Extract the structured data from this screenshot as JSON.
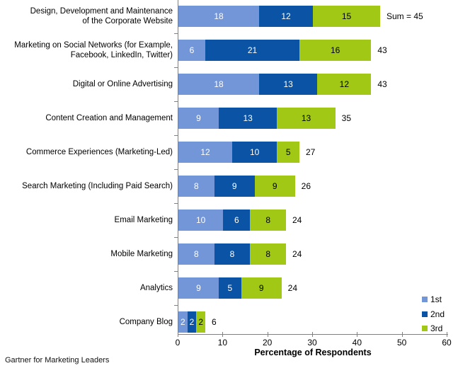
{
  "chart_data": {
    "type": "bar",
    "orientation": "horizontal",
    "stacked": true,
    "title": "",
    "xlabel": "Percentage of Respondents",
    "ylabel": "",
    "xlim": [
      0,
      60
    ],
    "xticks": [
      0,
      10,
      20,
      30,
      40,
      50,
      60
    ],
    "grid": false,
    "axis_color": "#808080",
    "legend_position": "bottom-right",
    "categories": [
      "Design, Development and Maintenance\nof the Corporate Website",
      "Marketing on Social Networks (for Example,\nFacebook, LinkedIn, Twitter)",
      "Digital or Online Advertising",
      "Content Creation and Management",
      "Commerce Experiences (Marketing-Led)",
      "Search Marketing (Including Paid Search)",
      "Email Marketing",
      "Mobile Marketing",
      "Analytics",
      "Company Blog"
    ],
    "series": [
      {
        "name": "1st",
        "color": "#7296D8",
        "label_color": "#FFFFFF",
        "values": [
          18,
          6,
          18,
          9,
          12,
          8,
          10,
          8,
          9,
          2
        ]
      },
      {
        "name": "2nd",
        "color": "#0A53A5",
        "label_color": "#FFFFFF",
        "values": [
          12,
          21,
          13,
          13,
          10,
          9,
          6,
          8,
          5,
          2
        ]
      },
      {
        "name": "3rd",
        "color": "#A0C814",
        "label_color": "#000000",
        "values": [
          15,
          16,
          12,
          13,
          5,
          9,
          8,
          8,
          9,
          2
        ]
      }
    ],
    "total_labels": [
      "Sum = 45",
      "43",
      "43",
      "35",
      "27",
      "26",
      "24",
      "24",
      "24",
      "6"
    ]
  },
  "footer": {
    "source_label": "Gartner for Marketing Leaders"
  }
}
